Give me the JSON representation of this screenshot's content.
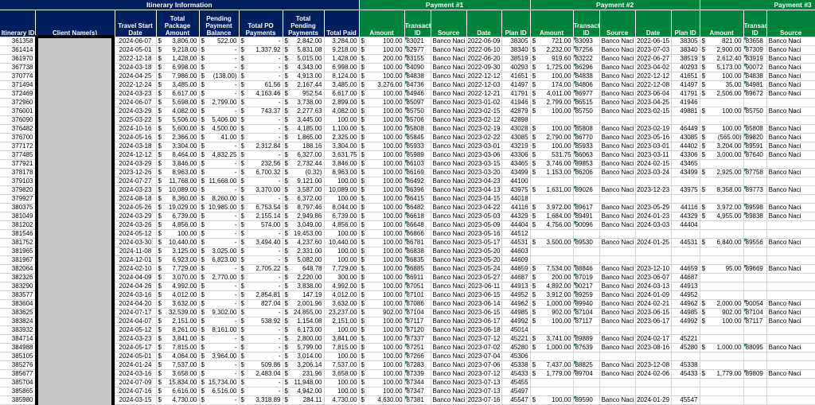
{
  "sections": {
    "itinerary": "Itinerary Information",
    "payment1": "Payment #1",
    "payment2": "Payment #2",
    "payment3": "Payment #3"
  },
  "headers": {
    "itinerary_id": "Itinerary ID",
    "client_name": "Client Name(s)",
    "travel_start": "Travel Start Date",
    "total_package": "Total Package Amount",
    "pending_balance": "Pending Payment Balance",
    "total_po": "Total PO Payments",
    "total_pending": "Total Pending Payments",
    "total_paid": "Total Paid",
    "p1_amount": "Amount",
    "p1_txn": "Transaction ID",
    "p1_source": "Source",
    "p1_date": "Date",
    "p1_plan": "Plan ID",
    "p2_amount": "Amount",
    "p2_txn": "Transaction ID",
    "p2_source": "Source",
    "p2_date": "Date",
    "p2_plan": "Plan ID",
    "p3_amount": "Amount",
    "p3_txn": "Transaction ID",
    "p3_source": "Source"
  },
  "rows": [
    [
      "361358",
      "",
      "2024-06-07",
      "3,806.00",
      "522.00",
      "-",
      "2,842.00",
      "3,284.00",
      "100.00",
      "83021",
      "Banco Naci",
      "2022-06-09",
      "38305",
      "721.00",
      "83093",
      "Banco Naci",
      "2022-06-15",
      "38305",
      "821.00",
      "83658",
      "Banco Naci"
    ],
    [
      "361414",
      "",
      "2024-05-01",
      "9,218.00",
      "-",
      "1,337.92",
      "5,831.08",
      "9,218.00",
      "100.00",
      "82977",
      "Banco Naci",
      "2022-06-10",
      "38340",
      "2,232.00",
      "87256",
      "Banco Naci",
      "2023-07-03",
      "38340",
      "2,900.00",
      "87309",
      "Banco Naci"
    ],
    [
      "361970",
      "",
      "2022-12-18",
      "1,428.00",
      "-",
      "-",
      "5,015.00",
      "1,428.00",
      "200.00",
      "83155",
      "Banco Naci",
      "2022-06-20",
      "38519",
      "919.60",
      "83222",
      "Banco Naci",
      "2022-06-27",
      "38519",
      "2,612.40",
      "83919",
      "Banco Naci"
    ],
    [
      "367738",
      "",
      "2024-03-18",
      "6,998.00",
      "-",
      "-",
      "4,343.00",
      "6,998.00",
      "100.00",
      "84090",
      "Banco Naci",
      "2022-09-30",
      "40293",
      "1,725.00",
      "86296",
      "Banco Naci",
      "2023-04-02",
      "40293",
      "5,173.00",
      "90072",
      "Banco Naci"
    ],
    [
      "370774",
      "",
      "2024-04-25",
      "7,986.00",
      "(138.00)",
      "-",
      "4,913.00",
      "8,124.00",
      "100.00",
      "84838",
      "Banco Naci",
      "2022-12-12",
      "41651",
      "100.00",
      "84838",
      "Banco Naci",
      "2022-12-12",
      "41651",
      "100.00",
      "84838",
      "Banco Naci"
    ],
    [
      "371494",
      "",
      "2022-12-24",
      "3,485.00",
      "-",
      "61.56",
      "2,167.44",
      "3,485.00",
      "3,276.00",
      "84736",
      "Banco Naci",
      "2022-12-03",
      "41497",
      "174.00",
      "84806",
      "Banco Naci",
      "2022-12-08",
      "41497",
      "35.00",
      "84981",
      "Banco Naci"
    ],
    [
      "372469",
      "",
      "2024-03-23",
      "6,617.00",
      "-",
      "4,163.46",
      "952.54",
      "6,617.00",
      "100.00",
      "84946",
      "Banco Naci",
      "2022-12-21",
      "41791",
      "4,011.00",
      "86977",
      "Banco Naci",
      "2023-06-04",
      "41791",
      "2,506.00",
      "89672",
      "Banco Naci"
    ],
    [
      "372960",
      "",
      "2024-06-07",
      "5,698.00",
      "2,799.00",
      "-",
      "3,738.00",
      "2,899.00",
      "100.00",
      "85097",
      "Banco Naci",
      "2023-01-02",
      "41946",
      "2,799.00",
      "86515",
      "Banco Naci",
      "2023-04-25",
      "41946",
      "",
      "",
      ""
    ],
    [
      "376001",
      "",
      "2024-03-29",
      "4,082.00",
      "-",
      "743.37",
      "2,277.63",
      "4,082.00",
      "100.00",
      "85750",
      "Banco Naci",
      "2023-02-15",
      "42879",
      "100.00",
      "85750",
      "Banco Naci",
      "2023-02-15",
      "49881",
      "100.00",
      "85750",
      "Banco Naci"
    ],
    [
      "376090",
      "",
      "2025-03-22",
      "5,506.00",
      "5,406.00",
      "-",
      "3,445.00",
      "100.00",
      "100.00",
      "85706",
      "Banco Naci",
      "2023-02-12",
      "42898",
      "",
      "",
      "",
      "",
      "",
      "",
      "",
      ""
    ],
    [
      "376482",
      "",
      "2024-10-16",
      "5,600.00",
      "4,500.00",
      "-",
      "4,185.00",
      "1,100.00",
      "100.00",
      "85808",
      "Banco Naci",
      "2023-02-19",
      "43028",
      "100.00",
      "85808",
      "Banco Naci",
      "2023-02-19",
      "46449",
      "100.00",
      "85808",
      "Banco Naci"
    ],
    [
      "376700",
      "",
      "2024-05-16",
      "2,366.00",
      "41.00",
      "-",
      "1,865.00",
      "2,325.00",
      "100.00",
      "85845",
      "Banco Naci",
      "2023-02-22",
      "43085",
      "2,790.00",
      "86770",
      "Banco Naci",
      "2023-05-16",
      "43085",
      "(565.00)",
      "89820",
      "Banco Naci"
    ],
    [
      "377172",
      "",
      "2024-03-18",
      "3,304.00",
      "-",
      "2,312.84",
      "188.16",
      "3,304.00",
      "100.00",
      "85933",
      "Banco Naci",
      "2023-03-01",
      "43219",
      "100.00",
      "85933",
      "Banco Naci",
      "2023-03-01",
      "44402",
      "3,204.00",
      "89591",
      "Banco Naci"
    ],
    [
      "377485",
      "",
      "2024-12-12",
      "8,464.00",
      "4,832.25",
      "-",
      "6,327.00",
      "3,631.75",
      "100.00",
      "85989",
      "Banco Naci",
      "2023-03-06",
      "43306",
      "531.75",
      "86063",
      "Banco Naci",
      "2023-03-11",
      "43306",
      "3,000.00",
      "87640",
      "Banco Naci"
    ],
    [
      "377921",
      "",
      "2024-03-29",
      "3,846.00",
      "-",
      "232.56",
      "2,732.44",
      "3,846.00",
      "100.00",
      "86103",
      "Banco Naci",
      "2023-03-15",
      "43465",
      "3,746.00",
      "89853",
      "Banco Naci",
      "2024-02-15",
      "43465",
      "",
      "",
      ""
    ],
    [
      "378178",
      "",
      "2023-12-26",
      "8,963.00",
      "-",
      "6,700.32",
      "(0.32)",
      "8,963.00",
      "100.00",
      "86169",
      "Banco Naci",
      "2023-03-20",
      "43499",
      "1,153.00",
      "86206",
      "Banco Naci",
      "2023-03-24",
      "43499",
      "2,925.00",
      "87758",
      "Banco Naci"
    ],
    [
      "379103",
      "",
      "2024-07-27",
      "11,768.00",
      "11,668.00",
      "-",
      "9,121.00",
      "100.00",
      "100.00",
      "86492",
      "Banco Naci",
      "2023-04-23",
      "44100",
      "",
      "",
      "",
      "",
      "",
      "",
      "",
      ""
    ],
    [
      "379820",
      "",
      "2024-03-23",
      "10,089.00",
      "-",
      "3,370.00",
      "3,587.00",
      "10,089.00",
      "100.00",
      "86396",
      "Banco Naci",
      "2023-04-13",
      "43975",
      "1,631.00",
      "89026",
      "Banco Naci",
      "2023-12-23",
      "43975",
      "8,358.00",
      "89773",
      "Banco Naci"
    ],
    [
      "379927",
      "",
      "2024-08-18",
      "8,360.00",
      "8,260.00",
      "-",
      "6,372.00",
      "100.00",
      "100.00",
      "86415",
      "Banco Naci",
      "2023-04-15",
      "44018",
      "",
      "",
      "",
      "",
      "",
      "",
      "",
      ""
    ],
    [
      "380375",
      "",
      "2024-05-26",
      "19,029.00",
      "10,985.00",
      "6,753.54",
      "8,797.46",
      "8,044.00",
      "100.00",
      "86482",
      "Banco Naci",
      "2023-04-22",
      "44116",
      "3,972.00",
      "89617",
      "Banco Naci",
      "2023-05-29",
      "44116",
      "3,972.00",
      "89598",
      "Banco Naci"
    ],
    [
      "381049",
      "",
      "2024-03-29",
      "6,739.00",
      "-",
      "2,155.14",
      "2,949.86",
      "6,739.00",
      "100.00",
      "86618",
      "Banco Naci",
      "2023-05-03",
      "44329",
      "1,684.00",
      "89491",
      "Banco Naci",
      "2024-01-23",
      "44329",
      "4,955.00",
      "89838",
      "Banco Naci"
    ],
    [
      "381202",
      "",
      "2024-03-26",
      "4,856.00",
      "-",
      "574.00",
      "3,049.00",
      "4,856.00",
      "100.00",
      "86648",
      "Banco Naci",
      "2023-05-09",
      "44404",
      "4,756.00",
      "90096",
      "Banco Naci",
      "2024-03-03",
      "44404",
      "",
      "",
      ""
    ],
    [
      "381546",
      "",
      "2024-05-12",
      "100.00",
      "-",
      "-",
      "19,453.00",
      "100.00",
      "100.00",
      "86866",
      "Banco Naci",
      "2023-05-16",
      "44512",
      "",
      "",
      "",
      "",
      "",
      "",
      "",
      ""
    ],
    [
      "381752",
      "",
      "2024-03-30",
      "10,440.00",
      "-",
      "3,494.40",
      "4,237.60",
      "10,440.00",
      "100.00",
      "86781",
      "Banco Naci",
      "2023-05-17",
      "44531",
      "3,500.00",
      "89530",
      "Banco Naci",
      "2024-01-25",
      "44531",
      "6,840.00",
      "89556",
      "Banco Naci"
    ],
    [
      "381965",
      "",
      "2024-11-08",
      "3,125.00",
      "3,025.00",
      "-",
      "2,331.00",
      "100.00",
      "100.00",
      "86838",
      "Banco Naci",
      "2023-05-20",
      "44603",
      "",
      "",
      "",
      "",
      "",
      "",
      "",
      ""
    ],
    [
      "381967",
      "",
      "2024-12-01",
      "6,923.00",
      "6,823.00",
      "-",
      "5,082.00",
      "100.00",
      "100.00",
      "86835",
      "Banco Naci",
      "2023-05-20",
      "44609",
      "",
      "",
      "",
      "",
      "",
      "",
      "",
      ""
    ],
    [
      "382064",
      "",
      "2024-02-10",
      "7,729.00",
      "-",
      "2,705.22",
      "648.78",
      "7,729.00",
      "100.00",
      "86885",
      "Banco Naci",
      "2023-05-24",
      "44659",
      "7,534.00",
      "88846",
      "Banco Naci",
      "2023-12-10",
      "44659",
      "95.00",
      "89669",
      "Banco Naci"
    ],
    [
      "382326",
      "",
      "2024-04-09",
      "3,070.00",
      "2,770.00",
      "-",
      "2,220.00",
      "300.00",
      "100.00",
      "86911",
      "Banco Naci",
      "2023-05-27",
      "44687",
      "200.00",
      "87019",
      "Banco Naci",
      "2023-06-07",
      "44687",
      "",
      "",
      ""
    ],
    [
      "383290",
      "",
      "2024-04-26",
      "4,992.00",
      "-",
      "-",
      "3,838.00",
      "4,992.00",
      "100.00",
      "87051",
      "Banco Naci",
      "2023-06-11",
      "44913",
      "4,892.00",
      "90217",
      "Banco Naci",
      "2024-03-13",
      "44913",
      "",
      "",
      ""
    ],
    [
      "383577",
      "",
      "2024-03-16",
      "4,012.00",
      "-",
      "2,854.81",
      "147.19",
      "4,012.00",
      "100.00",
      "87101",
      "Banco Naci",
      "2023-06-15",
      "44952",
      "3,912.00",
      "89259",
      "Banco Naci",
      "2024-01-09",
      "44952",
      "",
      "",
      ""
    ],
    [
      "383604",
      "",
      "2024-04-20",
      "3,632.00",
      "-",
      "827.04",
      "2,001.96",
      "3,632.00",
      "100.00",
      "87086",
      "Banco Naci",
      "2023-06-14",
      "44962",
      "1,000.00",
      "89940",
      "Banco Naci",
      "2024-02-21",
      "44962",
      "2,000.00",
      "90054",
      "Banco Naci"
    ],
    [
      "383625",
      "",
      "2024-07-17",
      "32,539.00",
      "9,302.00",
      "-",
      "24,855.00",
      "23,237.00",
      "902.00",
      "87104",
      "Banco Naci",
      "2023-06-15",
      "44985",
      "902.00",
      "87104",
      "Banco Naci",
      "2023-06-15",
      "44985",
      "902.00",
      "87104",
      "Banco Naci"
    ],
    [
      "383824",
      "",
      "2024-04-07",
      "2,151.00",
      "-",
      "538.92",
      "1,154.08",
      "2,151.00",
      "100.00",
      "87117",
      "Banco Naci",
      "2023-06-17",
      "44992",
      "100.00",
      "87117",
      "Banco Naci",
      "2023-06-17",
      "44992",
      "100.00",
      "87117",
      "Banco Naci"
    ],
    [
      "383932",
      "",
      "2024-05-12",
      "8,261.00",
      "8,161.00",
      "-",
      "6,173.00",
      "100.00",
      "100.00",
      "87120",
      "Banco Naci",
      "2023-06-18",
      "45014",
      "",
      "",
      "",
      "",
      "",
      "",
      "",
      ""
    ],
    [
      "384714",
      "",
      "2024-03-23",
      "3,841.00",
      "-",
      "-",
      "2,800.00",
      "3,841.00",
      "100.00",
      "87337",
      "Banco Naci",
      "2023-07-12",
      "45221",
      "3,741.00",
      "89889",
      "Banco Naci",
      "2024-02-17",
      "45221",
      "",
      "",
      ""
    ],
    [
      "384988",
      "",
      "2024-05-17",
      "7,815.00",
      "-",
      "-",
      "5,799.00",
      "7,815.00",
      "100.00",
      "87251",
      "Banco Naci",
      "2023-07-02",
      "45280",
      "1,000.00",
      "87639",
      "Banco Naci",
      "2023-08-16",
      "45280",
      "1,000.00",
      "88095",
      "Banco Naci"
    ],
    [
      "385105",
      "",
      "2024-05-01",
      "4,064.00",
      "3,964.00",
      "-",
      "3,014.00",
      "100.00",
      "100.00",
      "87266",
      "Banco Naci",
      "2023-07-04",
      "45306",
      "",
      "",
      "",
      "",
      "",
      "",
      "",
      ""
    ],
    [
      "385276",
      "",
      "2024-01-24",
      "7,537.00",
      "-",
      "509.86",
      "3,206.14",
      "7,537.00",
      "100.00",
      "87283",
      "Banco Naci",
      "2023-07-06",
      "45338",
      "7,437.00",
      "88825",
      "Banco Naci",
      "2023-12-08",
      "45338",
      "",
      "",
      ""
    ],
    [
      "385677",
      "",
      "2024-03-16",
      "3,658.00",
      "-",
      "2,483.04",
      "231.96",
      "3,658.00",
      "100.00",
      "87339",
      "Banco Naci",
      "2023-07-12",
      "45433",
      "1,779.00",
      "89704",
      "Banco Naci",
      "2024-02-06",
      "45433",
      "1,779.00",
      "89809",
      "Banco Naci"
    ],
    [
      "385704",
      "",
      "2024-07-09",
      "15,834.00",
      "15,734.00",
      "-",
      "11,948.00",
      "100.00",
      "100.00",
      "87344",
      "Banco Naci",
      "2023-07-13",
      "45455",
      "",
      "",
      "",
      "",
      "",
      "",
      "",
      ""
    ],
    [
      "385865",
      "",
      "2024-07-16",
      "6,616.00",
      "6,516.00",
      "-",
      "4,942.00",
      "100.00",
      "100.00",
      "87347",
      "Banco Naci",
      "2023-07-13",
      "45497",
      "",
      "",
      "",
      "",
      "",
      "",
      "",
      ""
    ],
    [
      "385980",
      "",
      "2024-03-15",
      "4,730.00",
      "-",
      "3,318.89",
      "284.11",
      "4,730.00",
      "4,630.00",
      "87381",
      "Banco Naci",
      "2023-07-16",
      "45547",
      "100.00",
      "89590",
      "Banco Naci",
      "2024-01-29",
      "45547",
      "",
      "",
      ""
    ]
  ],
  "colors": {
    "itinerary_header": "#002060",
    "payment_header": "#00833a",
    "redaction": "#c6c6c6"
  }
}
